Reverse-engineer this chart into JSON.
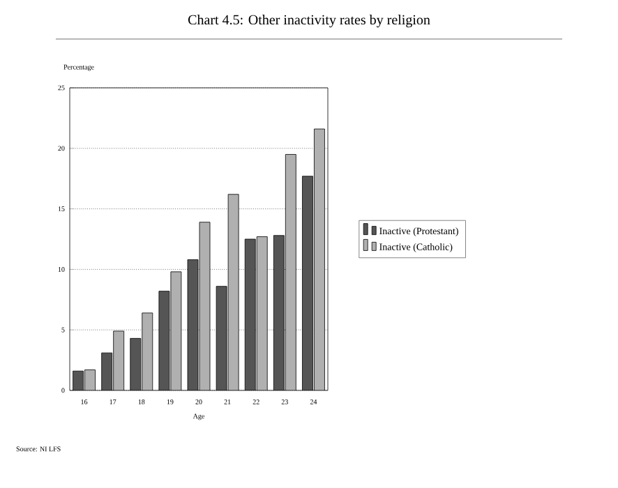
{
  "chart_data": {
    "type": "bar",
    "title": "Chart 4.5: Other inactivity rates by religion",
    "xlabel": "Age",
    "ylabel": "Percentage",
    "categories": [
      "16",
      "17",
      "18",
      "19",
      "20",
      "21",
      "22",
      "23",
      "24"
    ],
    "series": [
      {
        "name": "Inactive (Protestant)",
        "color": "#555555",
        "values": [
          1.6,
          3.1,
          4.3,
          8.2,
          10.8,
          8.6,
          12.5,
          12.8,
          17.7
        ]
      },
      {
        "name": "Inactive (Catholic)",
        "color": "#b0b0b0",
        "values": [
          1.7,
          4.9,
          6.4,
          9.8,
          13.9,
          16.2,
          12.7,
          19.5,
          21.6
        ]
      }
    ],
    "ylim": [
      0,
      25
    ],
    "yticks": [
      0,
      5,
      10,
      15,
      20,
      25
    ],
    "grid": "y",
    "legend": "right",
    "annotations": [
      "Source: NI LFS"
    ]
  }
}
